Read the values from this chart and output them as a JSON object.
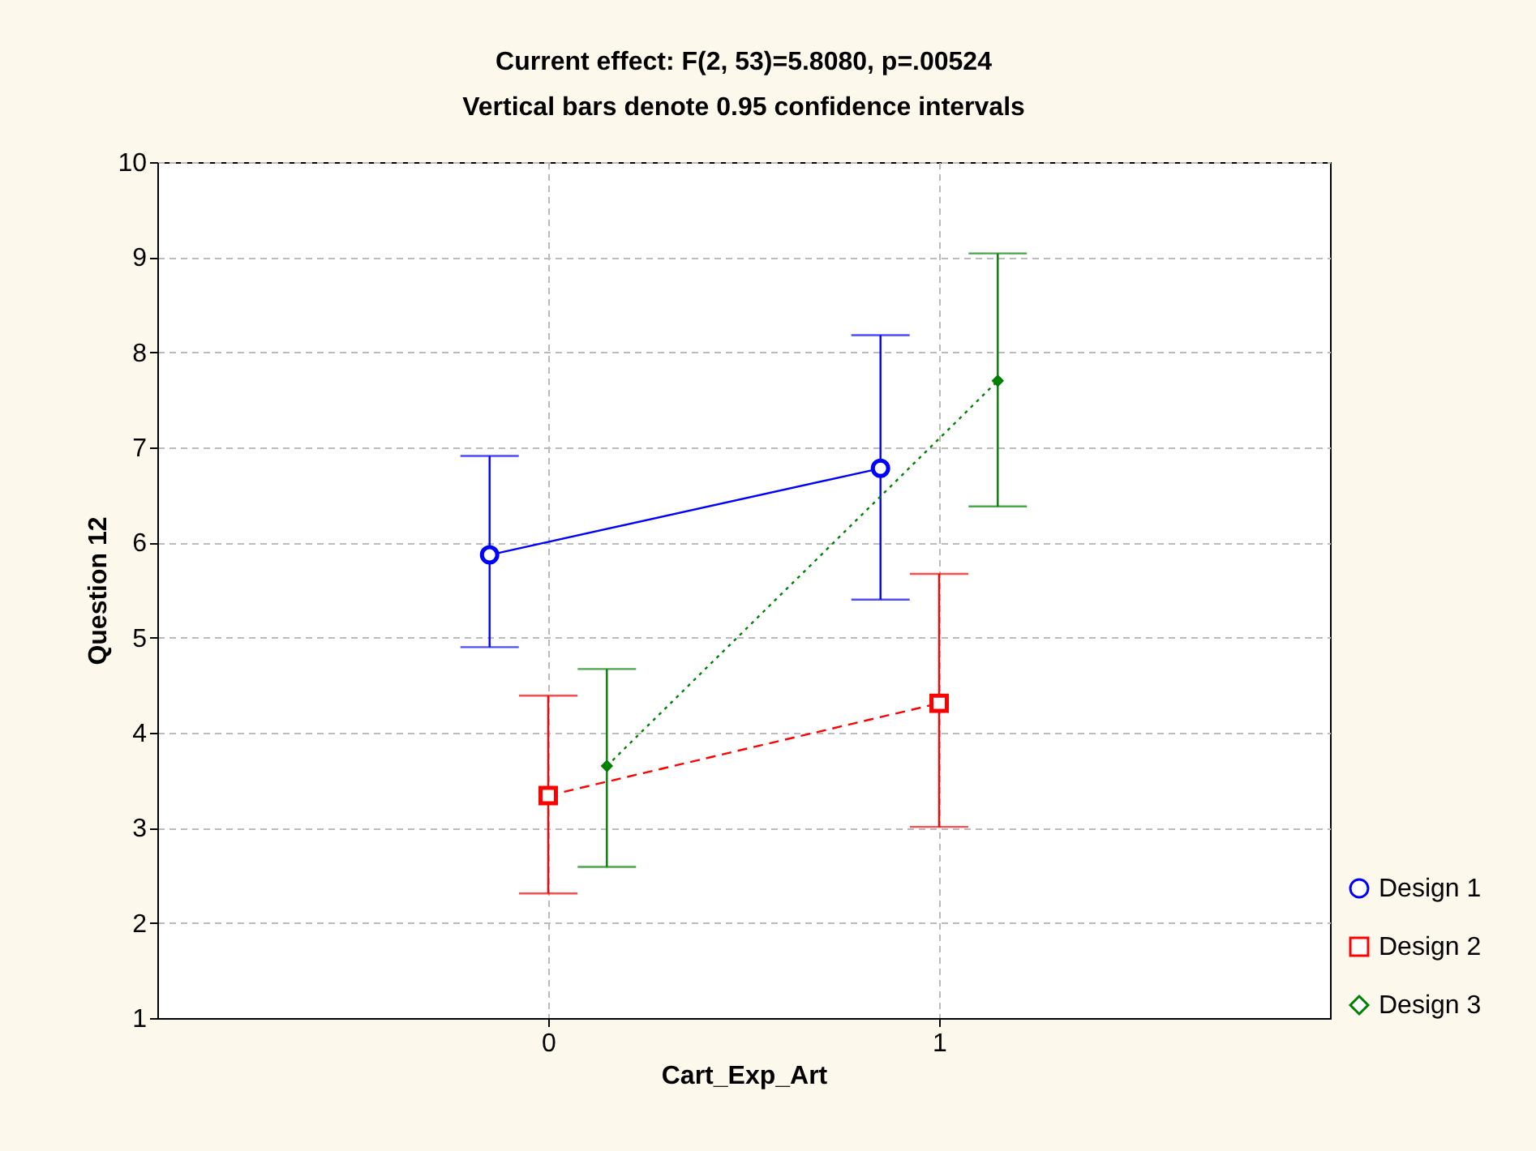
{
  "chart_data": {
    "type": "line",
    "title": "Current effect: F(2, 53)=5.8080, p=.00524",
    "subtitle": "Vertical bars denote 0.95 confidence intervals",
    "xlabel": "Cart_Exp_Art",
    "ylabel": "Question 12",
    "xlim": [
      -1,
      2
    ],
    "xticks": [
      0,
      1
    ],
    "ylim": [
      1,
      10
    ],
    "yticks": [
      1,
      2,
      3,
      4,
      5,
      6,
      7,
      8,
      9,
      10
    ],
    "grid": true,
    "legend": "bottom right",
    "series": [
      {
        "name": "Design 1",
        "color": "#0000ff",
        "marker": "circle",
        "line_style": "solid",
        "x": [
          -0.15,
          0.85
        ],
        "values": [
          5.87,
          6.78
        ],
        "errors": [
          [
            4.9,
            6.91
          ],
          [
            5.4,
            8.18
          ]
        ]
      },
      {
        "name": "Design 2",
        "color": "#ff0000",
        "marker": "square",
        "line_style": "dashed",
        "x": [
          0,
          1
        ],
        "values": [
          3.34,
          4.31
        ],
        "errors": [
          [
            2.31,
            4.39
          ],
          [
            3.01,
            5.67
          ]
        ]
      },
      {
        "name": "Design 3",
        "color": "#008000",
        "marker": "diamond",
        "line_style": "dotted",
        "x": [
          0.15,
          1.15
        ],
        "values": [
          3.65,
          7.7
        ],
        "errors": [
          [
            2.59,
            4.67
          ],
          [
            6.38,
            9.04
          ]
        ]
      }
    ]
  }
}
